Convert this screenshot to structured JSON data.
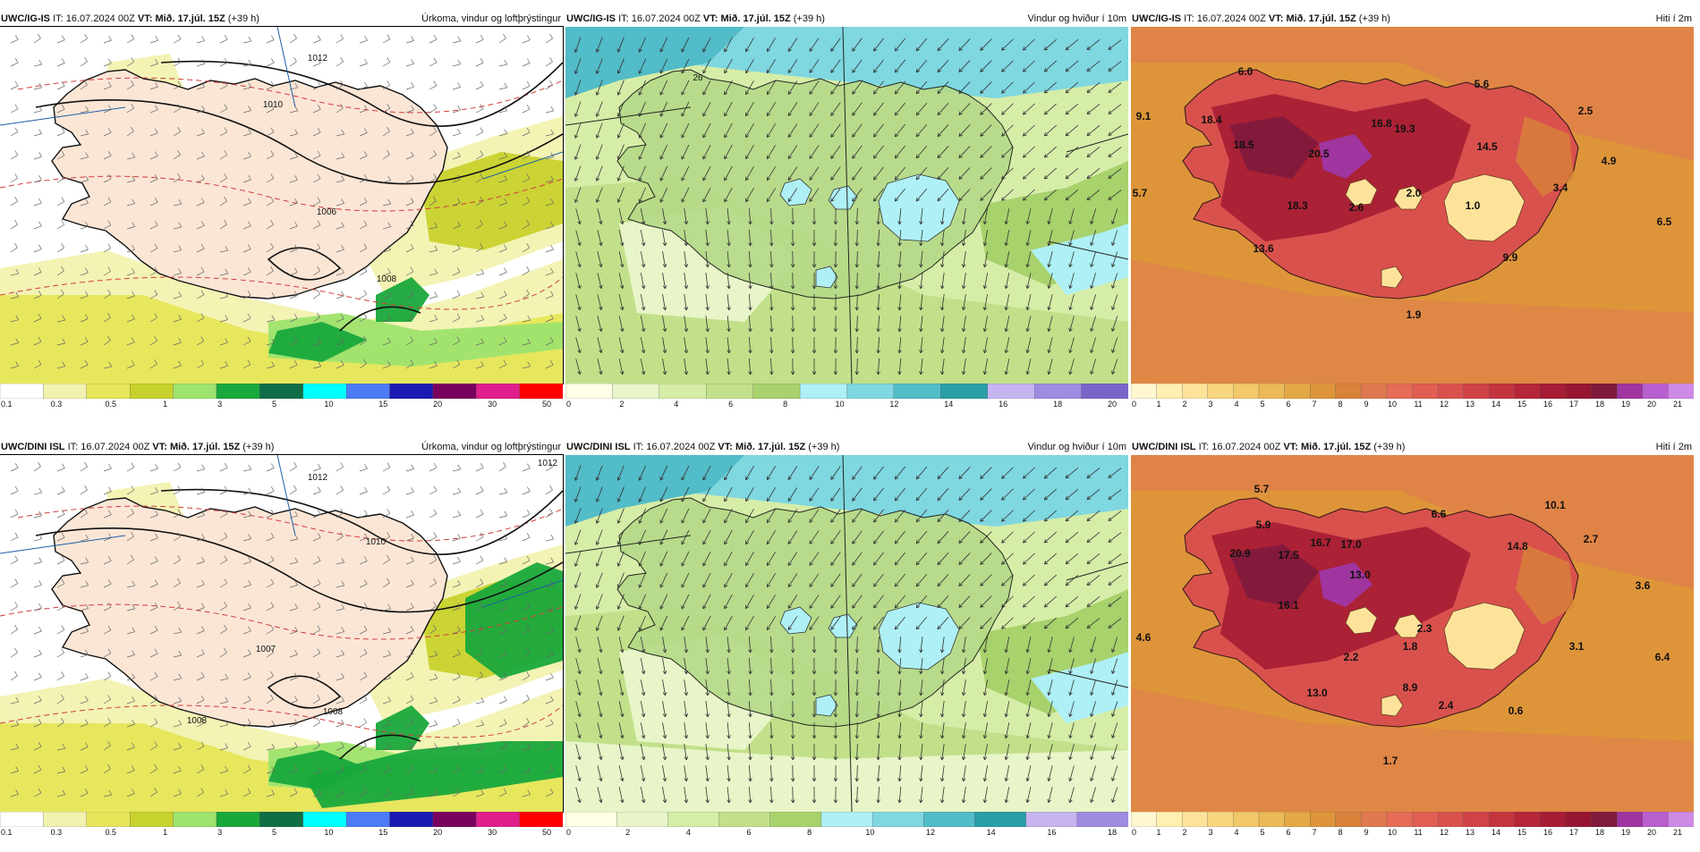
{
  "panels": [
    {
      "id": "p1",
      "model": "UWC/IG-IS",
      "it_label": "IT:",
      "it": "16.07.2024 00Z",
      "vt_label": "VT:",
      "vt": "Mið. 17.júl. 15Z",
      "lead": "(+39 h)",
      "title": "Úrkoma, vindur og loftþrýstingur"
    },
    {
      "id": "p2",
      "model": "UWC/IG-IS",
      "it_label": "IT:",
      "it": "16.07.2024 00Z",
      "vt_label": "VT:",
      "vt": "Mið. 17.júl. 15Z",
      "lead": "(+39 h)",
      "title": "Vindur og hviður í 10m"
    },
    {
      "id": "p3",
      "model": "UWC/IG-IS",
      "it_label": "IT:",
      "it": "16.07.2024 00Z",
      "vt_label": "VT:",
      "vt": "Mið. 17.júl. 15Z",
      "lead": "(+39 h)",
      "title": "Hiti í 2m"
    },
    {
      "id": "p4",
      "model": "UWC/DINI ISL",
      "it_label": "IT:",
      "it": "16.07.2024 00Z",
      "vt_label": "VT:",
      "vt": "Mið. 17.júl. 15Z",
      "lead": "(+39 h)",
      "title": "Úrkoma, vindur og loftþrýstingur"
    },
    {
      "id": "p5",
      "model": "UWC/DINI ISL",
      "it_label": "IT:",
      "it": "16.07.2024 00Z",
      "vt_label": "VT:",
      "vt": "Mið. 17.júl. 15Z",
      "lead": "(+39 h)",
      "title": "Vindur og hviður í 10m"
    },
    {
      "id": "p6",
      "model": "UWC/DINI ISL",
      "it_label": "IT:",
      "it": "16.07.2024 00Z",
      "vt_label": "VT:",
      "vt": "Mið. 17.júl. 15Z",
      "lead": "(+39 h)",
      "title": "Hiti í 2m"
    }
  ],
  "legends": {
    "precip": {
      "ticks": [
        "0.1",
        "0.3",
        "0.5",
        "1",
        "3",
        "5",
        "10",
        "15",
        "20",
        "30",
        "50"
      ],
      "colors": [
        "#ffffff",
        "#f2f2b0",
        "#e6e65a",
        "#c8d22d",
        "#9ee36e",
        "#19a83c",
        "#106e46",
        "#00ffff",
        "#4c7cf5",
        "#1a1ab2",
        "#7a0060",
        "#e01e8c",
        "#ff0000"
      ]
    },
    "wind_ig": {
      "ticks": [
        "0",
        "2",
        "4",
        "6",
        "8",
        "10",
        "12",
        "14",
        "16",
        "18",
        "20"
      ],
      "colors": [
        "#ffffe6",
        "#e8f5c8",
        "#d6eda8",
        "#c2e08a",
        "#a8d26c",
        "#aef0f5",
        "#7fd7e0",
        "#52bcc8",
        "#2a9ea6",
        "#c6b4f0",
        "#9f8be0",
        "#7a64c8"
      ]
    },
    "wind_dini": {
      "ticks": [
        "0",
        "2",
        "4",
        "6",
        "8",
        "10",
        "12",
        "14",
        "16",
        "18"
      ],
      "colors": [
        "#ffffe6",
        "#e8f5c8",
        "#d6eda8",
        "#c2e08a",
        "#a8d26c",
        "#aef0f5",
        "#7fd7e0",
        "#52bcc8",
        "#2a9ea6",
        "#c6b4f0",
        "#9f8be0"
      ]
    },
    "temp": {
      "ticks": [
        "0",
        "1",
        "2",
        "3",
        "4",
        "5",
        "6",
        "7",
        "8",
        "9",
        "10",
        "11",
        "12",
        "13",
        "14",
        "15",
        "16",
        "17",
        "18",
        "19",
        "20",
        "21"
      ],
      "colors": [
        "#fff7d0",
        "#ffefb0",
        "#fde39a",
        "#f8d67f",
        "#f2c86a",
        "#ebb957",
        "#e5a847",
        "#de953a",
        "#d8823a",
        "#e0794f",
        "#e66c57",
        "#e05e52",
        "#d9514d",
        "#cf4246",
        "#c3343f",
        "#b52638",
        "#a51c34",
        "#961530",
        "#7f1a3c",
        "#a035a0",
        "#b85fd0",
        "#cf8ae6"
      ]
    }
  },
  "labels": {
    "p1": {
      "isobars": [
        "1012",
        "1010",
        "1006",
        "1008"
      ]
    },
    "p2": {
      "marks": [
        "26"
      ]
    },
    "p3": {
      "temps": [
        "6.0",
        "5.6",
        "9.1",
        "18.4",
        "19.3",
        "16.8",
        "2.5",
        "18.5",
        "20.5",
        "14.5",
        "4.9",
        "5.7",
        "2.0",
        "3.4",
        "18.3",
        "2.6",
        "1.0",
        "6.5",
        "13.6",
        "9.9",
        "1.9"
      ]
    },
    "p4": {
      "isobars": [
        "1012",
        "1012",
        "1010",
        "1007",
        "1008",
        "1008"
      ]
    },
    "p6": {
      "temps": [
        "5.7",
        "10.1",
        "5.9",
        "6.6",
        "16.7",
        "17.0",
        "2.7",
        "20.9",
        "17.5",
        "14.8",
        "13.0",
        "3.6",
        "16.1",
        "4.6",
        "1.8",
        "2.3",
        "3.1",
        "2.2",
        "6.4",
        "13.0",
        "8.9",
        "2.4",
        "0.6",
        "1.7"
      ]
    }
  }
}
